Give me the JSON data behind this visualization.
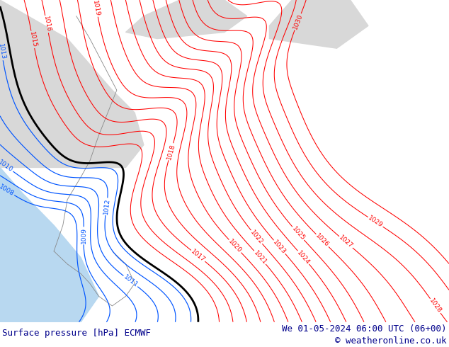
{
  "title_left": "Surface pressure [hPa] ECMWF",
  "title_right": "We 01-05-2024 06:00 UTC (06+00)",
  "copyright": "© weatheronline.co.uk",
  "bg_land_color": "#c8e8a0",
  "bg_sea_color": "#d8d8d8",
  "bg_sea2_color": "#b8d8f0",
  "contour_color_red": "#ff0000",
  "contour_color_blue": "#0055ff",
  "contour_color_black": "#000000",
  "footer_bg": "#d0d0d0",
  "footer_text_color": "#00008b",
  "footer_fontsize": 9,
  "figsize": [
    6.34,
    4.9
  ],
  "dpi": 100
}
